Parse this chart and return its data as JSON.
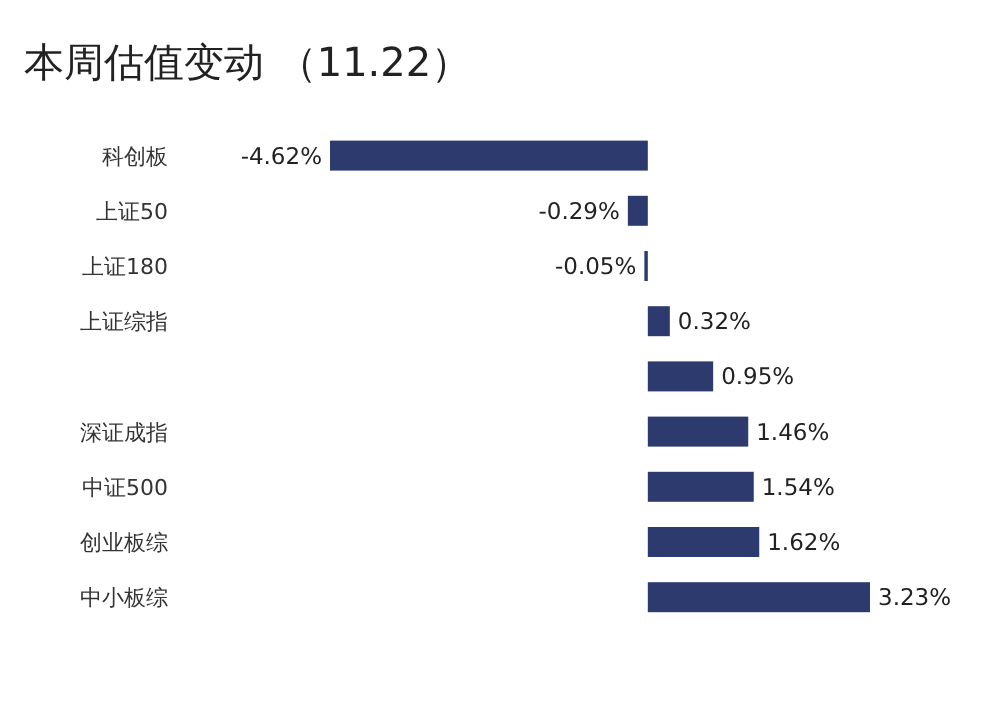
{
  "chart_data": {
    "type": "bar",
    "orientation": "horizontal",
    "title": "本周估值变动 （11.22）",
    "categories": [
      "科创板",
      "上证50",
      "上证180",
      "上证综指",
      null,
      "深证成指",
      "中证500",
      "创业板综",
      "中小板综"
    ],
    "values": [
      -4.62,
      -0.29,
      -0.05,
      0.32,
      0.95,
      1.46,
      1.54,
      1.62,
      3.23
    ],
    "value_labels": [
      "-4.62%",
      "-0.29%",
      "-0.05%",
      "0.32%",
      "0.95%",
      "1.46%",
      "1.54%",
      "1.62%",
      "3.23%"
    ],
    "color": "#2d3a6e"
  }
}
